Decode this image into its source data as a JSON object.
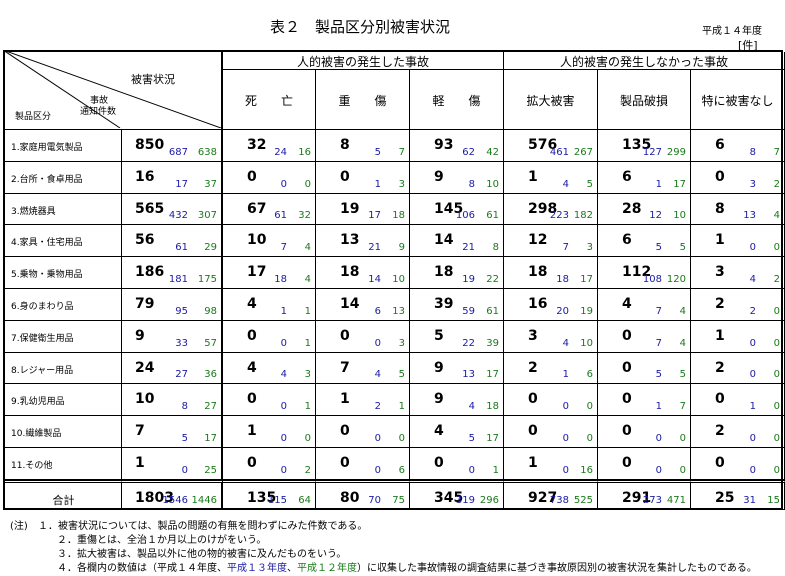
{
  "header": {
    "title": "表２　製品区分別被害状況",
    "year": "平成１４年度",
    "unit": "[件]"
  },
  "table": {
    "corner": {
      "damage": "被害状況",
      "accident": "事故",
      "count": "通知件数",
      "category": "製品区分"
    },
    "groups": [
      {
        "label": "人的被害の発生した事故",
        "columns": [
          "死　　亡",
          "重　　傷",
          "軽　　傷"
        ]
      },
      {
        "label": "人的被害の発生しなかった事故",
        "columns": [
          "拡大被害",
          "製品破損",
          "特に被害なし"
        ]
      }
    ],
    "rows": [
      {
        "label": "1.家庭用電気製品",
        "cells": [
          [
            850,
            687,
            638
          ],
          [
            32,
            24,
            16
          ],
          [
            8,
            5,
            7
          ],
          [
            93,
            62,
            42
          ],
          [
            576,
            461,
            267
          ],
          [
            135,
            127,
            299
          ],
          [
            6,
            8,
            7
          ]
        ]
      },
      {
        "label": "2.台所・食卓用品",
        "cells": [
          [
            16,
            17,
            37
          ],
          [
            0,
            0,
            0
          ],
          [
            0,
            1,
            3
          ],
          [
            9,
            8,
            10
          ],
          [
            1,
            4,
            5
          ],
          [
            6,
            1,
            17
          ],
          [
            0,
            3,
            2
          ]
        ]
      },
      {
        "label": "3.燃焼器具",
        "cells": [
          [
            565,
            432,
            307
          ],
          [
            67,
            61,
            32
          ],
          [
            19,
            17,
            18
          ],
          [
            145,
            106,
            61
          ],
          [
            298,
            223,
            182
          ],
          [
            28,
            12,
            10
          ],
          [
            8,
            13,
            4
          ]
        ]
      },
      {
        "label": "4.家具・住宅用品",
        "cells": [
          [
            56,
            61,
            29
          ],
          [
            10,
            7,
            4
          ],
          [
            13,
            21,
            9
          ],
          [
            14,
            21,
            8
          ],
          [
            12,
            7,
            3
          ],
          [
            6,
            5,
            5
          ],
          [
            1,
            0,
            0
          ]
        ]
      },
      {
        "label": "5.乗物・乗物用品",
        "cells": [
          [
            186,
            181,
            175
          ],
          [
            17,
            18,
            4
          ],
          [
            18,
            14,
            10
          ],
          [
            18,
            19,
            22
          ],
          [
            18,
            18,
            17
          ],
          [
            112,
            108,
            120
          ],
          [
            3,
            4,
            2
          ]
        ]
      },
      {
        "label": "6.身のまわり品",
        "cells": [
          [
            79,
            95,
            98
          ],
          [
            4,
            1,
            1
          ],
          [
            14,
            6,
            13
          ],
          [
            39,
            59,
            61
          ],
          [
            16,
            20,
            19
          ],
          [
            4,
            7,
            4
          ],
          [
            2,
            2,
            0
          ]
        ]
      },
      {
        "label": "7.保健衛生用品",
        "cells": [
          [
            9,
            33,
            57
          ],
          [
            0,
            0,
            1
          ],
          [
            0,
            0,
            3
          ],
          [
            5,
            22,
            39
          ],
          [
            3,
            4,
            10
          ],
          [
            0,
            7,
            4
          ],
          [
            1,
            0,
            0
          ]
        ]
      },
      {
        "label": "8.レジャー用品",
        "cells": [
          [
            24,
            27,
            36
          ],
          [
            4,
            4,
            3
          ],
          [
            7,
            4,
            5
          ],
          [
            9,
            13,
            17
          ],
          [
            2,
            1,
            6
          ],
          [
            0,
            5,
            5
          ],
          [
            2,
            0,
            0
          ]
        ]
      },
      {
        "label": "9.乳幼児用品",
        "cells": [
          [
            10,
            8,
            27
          ],
          [
            0,
            0,
            1
          ],
          [
            1,
            2,
            1
          ],
          [
            9,
            4,
            18
          ],
          [
            0,
            0,
            0
          ],
          [
            0,
            1,
            7
          ],
          [
            0,
            1,
            0
          ]
        ]
      },
      {
        "label": "10.繊維製品",
        "cells": [
          [
            7,
            5,
            17
          ],
          [
            1,
            0,
            0
          ],
          [
            0,
            0,
            0
          ],
          [
            4,
            5,
            17
          ],
          [
            0,
            0,
            0
          ],
          [
            0,
            0,
            0
          ],
          [
            2,
            0,
            0
          ]
        ]
      },
      {
        "label": "11.その他",
        "cells": [
          [
            1,
            0,
            25
          ],
          [
            0,
            0,
            2
          ],
          [
            0,
            0,
            6
          ],
          [
            0,
            0,
            1
          ],
          [
            1,
            0,
            16
          ],
          [
            0,
            0,
            0
          ],
          [
            0,
            0,
            0
          ]
        ]
      },
      {
        "label": "合計",
        "cells": [
          [
            1803,
            1546,
            1446
          ],
          [
            135,
            115,
            64
          ],
          [
            80,
            70,
            75
          ],
          [
            345,
            319,
            296
          ],
          [
            927,
            738,
            525
          ],
          [
            291,
            273,
            471
          ],
          [
            25,
            31,
            15
          ]
        ]
      }
    ]
  },
  "notes": {
    "prefix": "(注)",
    "items": [
      "１．被害状況については、製品の問題の有無を問わずにみた件数である。",
      "２．重傷とは、全治１か月以上のけがをいう。",
      "３．拡大被害は、製品以外に他の物的被害に及んだものをいう。"
    ],
    "last": [
      "４．各欄内の数値は（平成１４年度、",
      "平成１３年度",
      "、",
      "平成１２年度",
      "）に収集した事故情報の調査結果に基づき事故原因別の被害状況を集計したものである。"
    ]
  }
}
